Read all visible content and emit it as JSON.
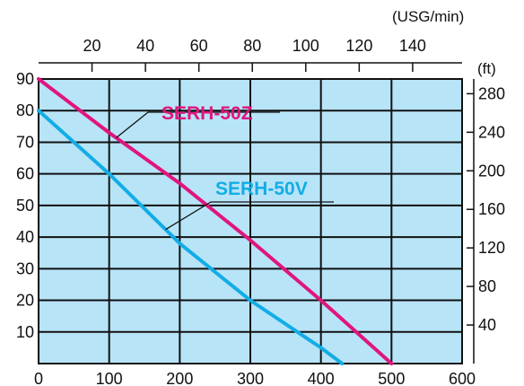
{
  "chart_data": {
    "type": "line",
    "x": [
      0,
      100,
      200,
      300,
      400,
      500,
      600
    ],
    "xlim": [
      0,
      600
    ],
    "ylim": [
      0,
      90
    ],
    "grid": true,
    "background": "#b8e4f7",
    "top_axis": {
      "unit": "(USG/min)",
      "ticks": [
        20,
        40,
        60,
        80,
        100,
        120,
        140
      ]
    },
    "right_axis": {
      "unit": "(ft)",
      "ticks": [
        40,
        80,
        120,
        160,
        200,
        240,
        280
      ]
    },
    "x_ticks": [
      0,
      100,
      200,
      300,
      400,
      500,
      600
    ],
    "y_ticks": [
      10,
      20,
      30,
      40,
      50,
      60,
      70,
      80,
      90
    ],
    "series": [
      {
        "name": "SERH-50Z",
        "color": "#e0157e",
        "points": [
          [
            0,
            90
          ],
          [
            100,
            73
          ],
          [
            200,
            57
          ],
          [
            300,
            39
          ],
          [
            400,
            20
          ],
          [
            500,
            0
          ]
        ]
      },
      {
        "name": "SERH-50V",
        "color": "#12ade6",
        "points": [
          [
            0,
            80
          ],
          [
            100,
            60
          ],
          [
            200,
            38
          ],
          [
            300,
            20
          ],
          [
            400,
            5
          ],
          [
            430,
            0
          ]
        ]
      }
    ]
  }
}
